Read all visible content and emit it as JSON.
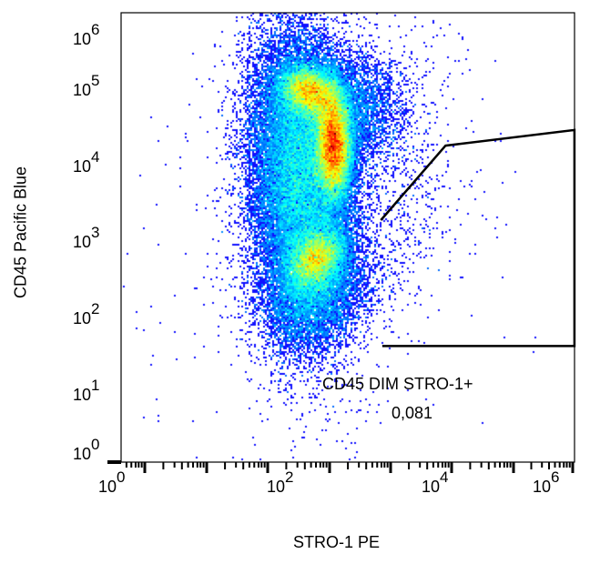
{
  "chart_data": {
    "type": "scatter",
    "style": "density pseudocolor (jet)",
    "xlabel": "STRO-1 PE",
    "ylabel": "CD45 Pacific Blue",
    "xscale": "log",
    "yscale": "log",
    "xticks": [
      {
        "base": "10",
        "exp": "0"
      },
      {
        "base": "10",
        "exp": "2"
      },
      {
        "base": "10",
        "exp": "4"
      },
      {
        "base": "10",
        "exp": "6"
      }
    ],
    "yticks": [
      {
        "base": "10",
        "exp": "6"
      },
      {
        "base": "10",
        "exp": "5"
      },
      {
        "base": "10",
        "exp": "4"
      },
      {
        "base": "10",
        "exp": "3"
      },
      {
        "base": "10",
        "exp": "2"
      },
      {
        "base": "10",
        "exp": "1"
      },
      {
        "base": "10",
        "exp": "0"
      }
    ],
    "populations": [
      {
        "x": 115,
        "y": 93000
      },
      {
        "x": 250,
        "y": 14400
      },
      {
        "x": 145,
        "y": 600
      }
    ],
    "gate": {
      "name": "CD45 DIM STRO-1+",
      "value": "0,081",
      "color": "#000000",
      "vertices": [
        [
          1100,
          1860
        ],
        [
          8500,
          17800
        ],
        [
          500000,
          28600
        ],
        [
          500000,
          41
        ],
        [
          1150,
          41
        ]
      ]
    }
  }
}
